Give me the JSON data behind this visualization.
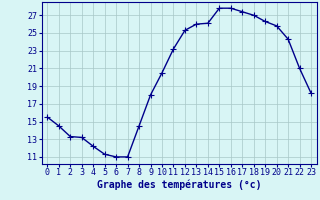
{
  "x": [
    0,
    1,
    2,
    3,
    4,
    5,
    6,
    7,
    8,
    9,
    10,
    11,
    12,
    13,
    14,
    15,
    16,
    17,
    18,
    19,
    20,
    21,
    22,
    23
  ],
  "y": [
    15.5,
    14.5,
    13.3,
    13.2,
    12.2,
    11.3,
    11.0,
    11.0,
    14.5,
    18.0,
    20.5,
    23.2,
    25.3,
    26.0,
    26.1,
    27.8,
    27.8,
    27.4,
    27.0,
    26.3,
    25.8,
    24.3,
    21.0,
    18.2
  ],
  "line_color": "#00008b",
  "marker": "+",
  "markersize": 4,
  "linewidth": 1.0,
  "background_color": "#d8f5f5",
  "grid_color": "#a8c8c8",
  "xlabel": "Graphe des températures (°c)",
  "xlabel_fontsize": 7,
  "ylabel_ticks": [
    11,
    13,
    15,
    17,
    19,
    21,
    23,
    25,
    27
  ],
  "xlim": [
    -0.5,
    23.5
  ],
  "ylim": [
    10.2,
    28.5
  ],
  "tick_fontsize": 6,
  "tick_color": "#00008b",
  "label_color": "#00008b",
  "spine_color": "#00008b"
}
